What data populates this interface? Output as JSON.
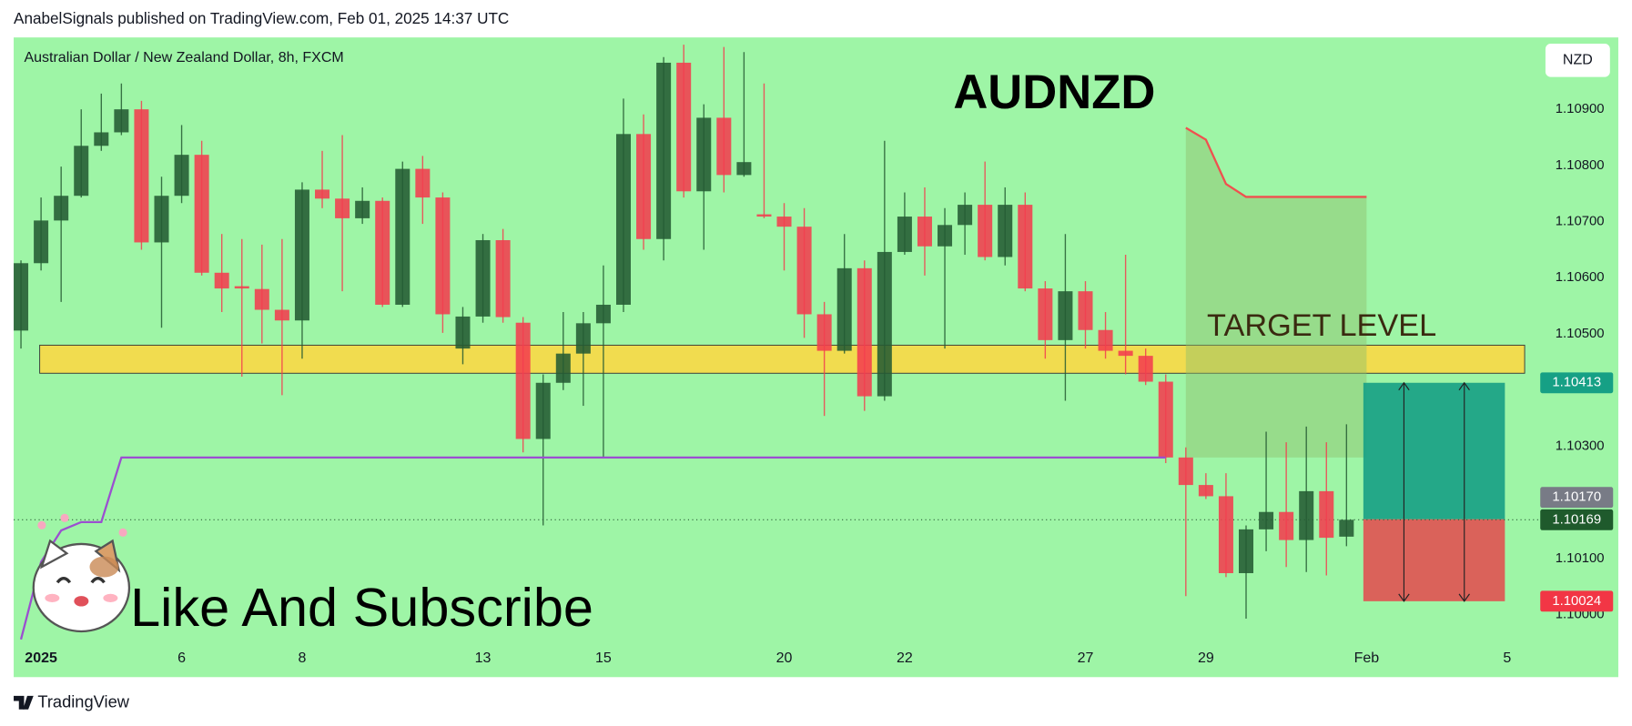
{
  "chart_data": {
    "type": "candlestick",
    "header": "AnabelSignals published on TradingView.com, Feb 01, 2025 14:37 UTC",
    "title": "AUDNZD",
    "subtitle": "Australian Dollar / New Zealand Dollar, 8h, FXCM",
    "currency": "NZD",
    "annotation": "Like And Subscribe",
    "footer": "TradingView",
    "up_color": "#245b33",
    "down_color": "#f23d4f",
    "categories": [
      null,
      "2025",
      null,
      null,
      null,
      null,
      null,
      null,
      "6",
      null,
      null,
      null,
      null,
      null,
      "8",
      null,
      null,
      null,
      null,
      null,
      null,
      null,
      null,
      "13",
      null,
      null,
      null,
      null,
      null,
      "15",
      null,
      null,
      null,
      null,
      null,
      null,
      null,
      null,
      "20",
      null,
      null,
      null,
      null,
      null,
      "22",
      null,
      null,
      null,
      null,
      null,
      null,
      null,
      null,
      "27",
      null,
      null,
      null,
      null,
      null,
      "29",
      null,
      null,
      null,
      null,
      null,
      null,
      null,
      "Feb",
      null,
      null,
      null,
      null,
      null,
      null,
      "5"
    ],
    "open": [
      1.10506,
      1.10626,
      1.10702,
      1.10746,
      1.10835,
      1.10859,
      1.109,
      1.10663,
      1.10746,
      1.10819,
      1.10609,
      1.10585,
      1.1058,
      1.10543,
      1.10524,
      1.10757,
      1.10741,
      1.10706,
      1.10737,
      1.10552,
      1.10794,
      1.10743,
      1.10474,
      1.10531,
      1.10667,
      1.1052,
      1.10313,
      1.10413,
      1.10465,
      1.10519,
      1.10552,
      1.10856,
      1.10669,
      1.10983,
      1.10754,
      1.10885,
      1.10783,
      1.10713,
      1.10709,
      1.10691,
      1.10535,
      1.1047,
      1.10617,
      1.10389,
      1.10646,
      1.10709,
      1.10656,
      1.10694,
      1.1073,
      1.10637,
      1.1073,
      1.10581,
      1.10489,
      1.10576,
      1.10507,
      1.1047,
      1.10461,
      1.10415,
      1.1028,
      1.10231,
      1.10211,
      1.10074,
      1.10152,
      1.10183,
      1.10133,
      1.1022,
      1.10139,
      null,
      null,
      null,
      null,
      null,
      null,
      null,
      null
    ],
    "high": [
      1.10631,
      1.10743,
      1.10798,
      1.109,
      1.10928,
      1.10946,
      1.10915,
      1.1078,
      1.10872,
      1.10844,
      1.10678,
      1.10669,
      1.10659,
      1.10669,
      1.1077,
      1.10826,
      1.10854,
      1.10761,
      1.10743,
      1.10807,
      1.10817,
      1.10752,
      1.10548,
      1.10678,
      1.10687,
      1.1053,
      1.10428,
      1.10539,
      1.10539,
      1.10622,
      1.10919,
      1.10891,
      1.10993,
      1.11015,
      1.10909,
      1.11011,
      1.11002,
      1.10946,
      1.10733,
      1.10724,
      1.10557,
      1.10678,
      1.10631,
      1.10844,
      1.10752,
      1.10761,
      1.10724,
      1.10752,
      1.10807,
      1.10761,
      1.10752,
      1.10594,
      1.10678,
      1.10594,
      1.10539,
      1.10641,
      1.10474,
      1.10428,
      1.10298,
      1.10252,
      1.10252,
      1.10159,
      1.10326,
      1.10307,
      1.10335,
      1.10307,
      1.10339,
      null,
      null,
      null,
      null,
      null,
      null,
      null,
      null
    ],
    "low": [
      1.10474,
      1.10613,
      1.10557,
      1.10743,
      1.10826,
      1.10854,
      1.1065,
      1.10511,
      1.10733,
      1.10604,
      1.10539,
      1.10424,
      1.10483,
      1.10391,
      1.10456,
      1.10724,
      1.10576,
      1.10696,
      1.10548,
      1.10548,
      1.10696,
      1.10502,
      1.10446,
      1.1052,
      1.1052,
      1.10289,
      1.10159,
      1.104,
      1.10372,
      1.1028,
      1.10539,
      1.1065,
      1.10631,
      1.10743,
      1.1065,
      1.10752,
      1.1078,
      1.10706,
      1.10613,
      1.10493,
      1.10354,
      1.10465,
      1.10363,
      1.10381,
      1.10641,
      1.10604,
      1.10474,
      1.10641,
      1.10631,
      1.10622,
      1.10576,
      1.10456,
      1.10381,
      1.10474,
      1.10456,
      1.10428,
      1.10409,
      1.1027,
      1.10033,
      1.10206,
      1.10067,
      1.09993,
      1.10113,
      1.10085,
      1.10076,
      1.1007,
      1.10122,
      null,
      null,
      null,
      null,
      null,
      null,
      null,
      null
    ],
    "close": [
      1.10626,
      1.10702,
      1.10746,
      1.10835,
      1.10859,
      1.109,
      1.10663,
      1.10746,
      1.10819,
      1.10609,
      1.10581,
      1.10581,
      1.10543,
      1.10524,
      1.10757,
      1.10741,
      1.10706,
      1.10737,
      1.10552,
      1.10794,
      1.10743,
      1.10535,
      1.10531,
      1.10667,
      1.1053,
      1.10313,
      1.10413,
      1.10465,
      1.10519,
      1.10552,
      1.10856,
      1.10669,
      1.10983,
      1.10754,
      1.10885,
      1.10783,
      1.10806,
      1.10709,
      1.10691,
      1.10535,
      1.1047,
      1.10617,
      1.10389,
      1.10646,
      1.10709,
      1.10656,
      1.10694,
      1.1073,
      1.10637,
      1.1073,
      1.10581,
      1.10489,
      1.10576,
      1.10507,
      1.1047,
      1.10461,
      1.10415,
      1.1028,
      1.10231,
      1.10211,
      1.10074,
      1.10152,
      1.10183,
      1.10133,
      1.1022,
      1.10137,
      1.10169,
      null,
      null,
      null,
      null,
      null,
      null,
      null,
      null
    ],
    "lines": [
      {
        "color": "#9b4fd0",
        "values": [
          1.09956,
          1.10094,
          1.1015,
          1.10165,
          1.10165,
          1.1028,
          1.1028,
          1.1028,
          1.1028,
          1.1028,
          1.1028,
          1.1028,
          1.1028,
          1.1028,
          1.1028,
          1.1028,
          1.1028,
          1.1028,
          1.1028,
          1.1028,
          1.1028,
          1.1028,
          1.1028,
          1.1028,
          1.1028,
          1.1028,
          1.1028,
          1.1028,
          1.1028,
          1.1028,
          1.1028,
          1.1028,
          1.1028,
          1.1028,
          1.1028,
          1.1028,
          1.1028,
          1.1028,
          1.1028,
          1.1028,
          1.1028,
          1.1028,
          1.1028,
          1.1028,
          1.1028,
          1.1028,
          1.1028,
          1.1028,
          1.1028,
          1.1028,
          1.1028,
          1.1028,
          1.1028,
          1.1028,
          1.1028,
          1.1028,
          1.1028,
          1.1028,
          null,
          null,
          null,
          null,
          null,
          null,
          null,
          null,
          null,
          null,
          null,
          null,
          null,
          null,
          null,
          null,
          null
        ]
      },
      {
        "color": "#f0504f",
        "values": [
          null,
          null,
          null,
          null,
          null,
          null,
          null,
          null,
          null,
          null,
          null,
          null,
          null,
          null,
          null,
          null,
          null,
          null,
          null,
          null,
          null,
          null,
          null,
          null,
          null,
          null,
          null,
          null,
          null,
          null,
          null,
          null,
          null,
          null,
          null,
          null,
          null,
          null,
          null,
          null,
          null,
          null,
          null,
          null,
          null,
          null,
          null,
          null,
          null,
          null,
          null,
          null,
          null,
          null,
          null,
          null,
          null,
          null,
          1.10867,
          1.10846,
          1.10767,
          1.10744,
          1.10744,
          1.10744,
          1.10744,
          1.10744,
          1.10744,
          1.10744,
          null,
          null,
          null,
          null,
          null,
          null,
          null
        ]
      }
    ],
    "target_zone": {
      "label": "TARGET LEVEL",
      "top": 1.1048,
      "bottom": 1.1043,
      "color": "#ffd740"
    },
    "position": {
      "target": {
        "value": 1.10413,
        "label": "1.10413"
      },
      "entry": {
        "value": 1.1017,
        "label": "1.10170"
      },
      "stop": {
        "value": 1.10024,
        "label": "1.10024"
      }
    },
    "last_price": {
      "value": 1.10169,
      "label": "1.10169"
    },
    "ylim": [
      1.0995,
      1.11028
    ],
    "yticks": [
      {
        "value": 1.1,
        "label": "1.10000"
      },
      {
        "value": 1.101,
        "label": "1.10100"
      },
      {
        "value": 1.103,
        "label": "1.10300"
      },
      {
        "value": 1.105,
        "label": "1.10500"
      },
      {
        "value": 1.106,
        "label": "1.10600"
      },
      {
        "value": 1.107,
        "label": "1.10700"
      },
      {
        "value": 1.108,
        "label": "1.10800"
      },
      {
        "value": 1.109,
        "label": "1.10900"
      }
    ],
    "grid": false
  }
}
